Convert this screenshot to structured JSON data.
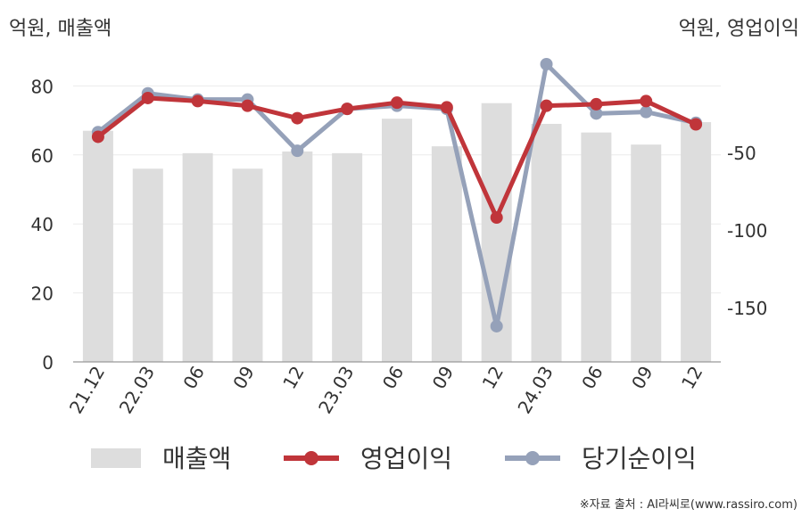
{
  "chart_data": {
    "type": "bar+line",
    "left_axis_title": "억원, 매출액",
    "right_axis_title": "억원, 영업이익",
    "categories": [
      "21.12",
      "22.03",
      "06",
      "09",
      "12",
      "23.03",
      "06",
      "09",
      "12",
      "24.03",
      "06",
      "09",
      "12"
    ],
    "left_ylim": [
      0,
      90
    ],
    "left_ticks": [
      0,
      20,
      40,
      60,
      80
    ],
    "right_ylim": [
      -185,
      15
    ],
    "right_ticks": [
      -150,
      -100,
      -50
    ],
    "series": [
      {
        "name": "매출액",
        "type": "bar",
        "axis": "left",
        "color": "#dddddd",
        "values": [
          67,
          56,
          60.5,
          56,
          61,
          60.5,
          70.5,
          62.5,
          75,
          69,
          66.5,
          63,
          69.5
        ]
      },
      {
        "name": "영업이익",
        "type": "line",
        "axis": "right",
        "color": "#c0353a",
        "values": [
          -40,
          -15,
          -17,
          -20,
          -28,
          -22,
          -18,
          -21,
          -92,
          -20,
          -19,
          -17,
          -32
        ]
      },
      {
        "name": "당기순이익",
        "type": "line",
        "axis": "right",
        "color": "#95a1b9",
        "values": [
          -37,
          -12,
          -16,
          -16,
          -49,
          -22,
          -20,
          -22,
          -162,
          8,
          -25,
          -24,
          -31
        ]
      }
    ],
    "legend_position": "bottom",
    "grid": true
  },
  "source": "※자료 출처 : AI라씨로(www.rassiro.com)"
}
